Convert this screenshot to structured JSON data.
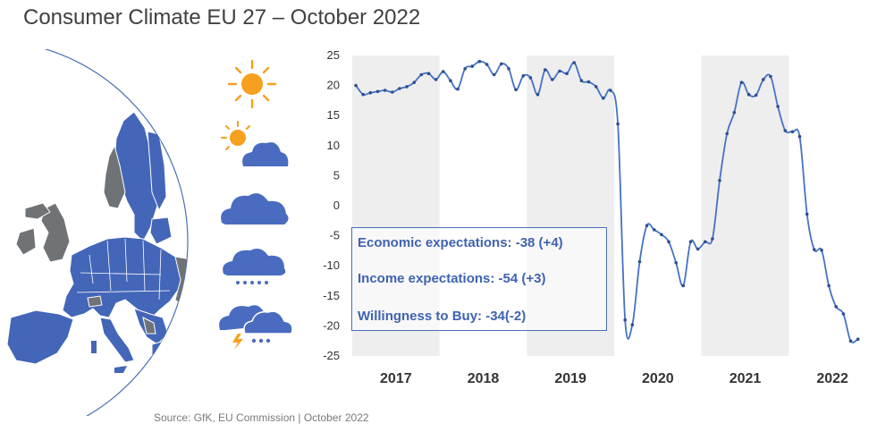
{
  "title": "Consumer Climate EU 27 – October 2022",
  "source": "Source: GfK, EU Commission | October 2022",
  "colors": {
    "line": "#4472c4",
    "band": "#eeeeee",
    "map_fill": "#4466b8",
    "map_gray": "#6f7376",
    "sun": "#f6a020",
    "cloud": "#4a6cc0"
  },
  "weather_icons": [
    "sun-icon",
    "sun-cloud-icon",
    "cloud-icon",
    "rain-cloud-icon",
    "storm-cloud-icon"
  ],
  "legend": [
    "Economic expectations: -38 (+4)",
    "Income expectations: -54 (+3)",
    "Willingness to Buy: -34(-2)"
  ],
  "chart_data": {
    "type": "line",
    "title": "",
    "xlabel": "",
    "ylabel": "",
    "ylim": [
      -25,
      25
    ],
    "yticks": [
      25,
      20,
      15,
      10,
      5,
      0,
      -5,
      -10,
      -15,
      -20,
      -25
    ],
    "year_labels": [
      "2017",
      "2018",
      "2019",
      "2020",
      "2021",
      "2022"
    ],
    "shaded_years": [
      "2017",
      "2019",
      "2021"
    ],
    "x_start": "2017-01",
    "series": [
      {
        "values": [
          20.0,
          18.5,
          18.8,
          19.0,
          19.2,
          18.9,
          19.5,
          19.8,
          20.5,
          21.8,
          22.0,
          21.0,
          22.3,
          20.8,
          19.4,
          22.8,
          23.2,
          24.0,
          23.5,
          21.8,
          23.6,
          22.8,
          19.3,
          21.6,
          21.3,
          18.5,
          22.6,
          21.0,
          22.4,
          22.0,
          23.8,
          20.8,
          20.6,
          19.8,
          17.9,
          19.2,
          13.6,
          -19.0,
          -19.8,
          -9.3,
          -3.3,
          -4.0,
          -4.8,
          -6.0,
          -9.5,
          -13.3,
          -6.0,
          -7.2,
          -6.0,
          -5.5,
          4.2,
          12.0,
          15.5,
          20.5,
          18.5,
          18.4,
          21.0,
          21.5,
          16.5,
          12.5,
          12.3,
          11.5,
          -1.4,
          -7.3,
          -7.4,
          -13.3,
          -16.8,
          -18.0,
          -22.5,
          -22.2
        ]
      }
    ]
  }
}
